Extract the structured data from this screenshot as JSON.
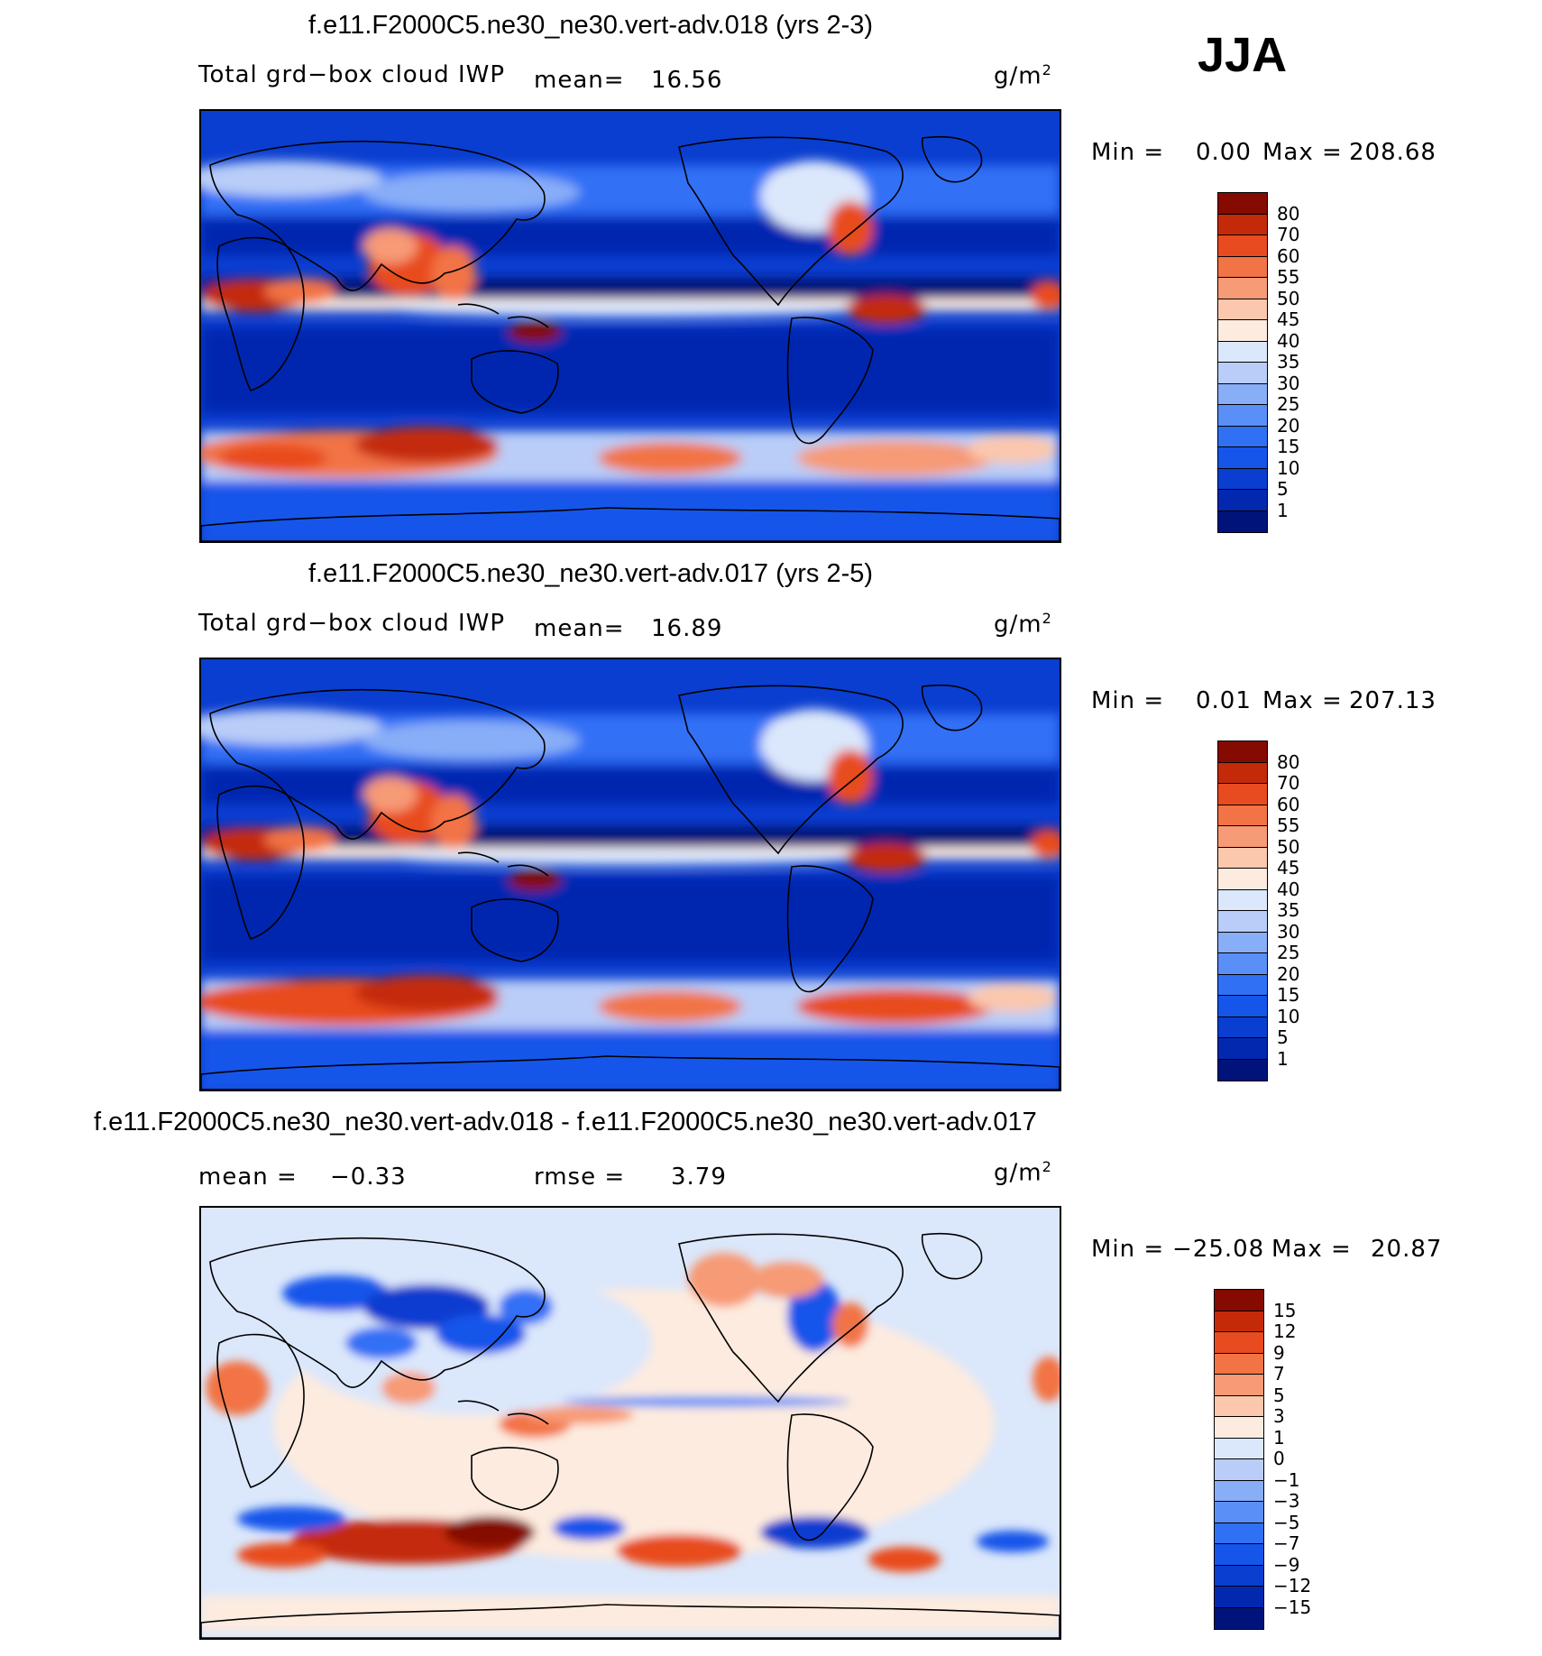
{
  "season": "JJA",
  "panels": [
    {
      "id": "p1",
      "title": "f.e11.F2000C5.ne30_ne30.vert-adv.018 (yrs 2-3)",
      "variable": "Total grd−box cloud IWP",
      "mean_label": "mean=",
      "mean_value": "16.56",
      "units": "g/m",
      "units_sup": "2",
      "min_label": "Min =",
      "min_value": "0.00",
      "max_label": "Max =",
      "max_value": "208.68"
    },
    {
      "id": "p2",
      "title": "f.e11.F2000C5.ne30_ne30.vert-adv.017 (yrs 2-5)",
      "variable": "Total grd−box cloud IWP",
      "mean_label": "mean=",
      "mean_value": "16.89",
      "units": "g/m",
      "units_sup": "2",
      "min_label": "Min =",
      "min_value": "0.01",
      "max_label": "Max =",
      "max_value": "207.13"
    },
    {
      "id": "p3",
      "title": "f.e11.F2000C5.ne30_ne30.vert-adv.018 - f.e11.F2000C5.ne30_ne30.vert-adv.017",
      "mean_label": "mean =",
      "mean_value": "−0.33",
      "rmse_label": "rmse =",
      "rmse_value": "3.79",
      "units": "g/m",
      "units_sup": "2",
      "min_label": "Min =",
      "min_value": "−25.08",
      "max_label": "Max =",
      "max_value": "20.87"
    }
  ],
  "chart_data": [
    {
      "type": "heatmap",
      "title": "f.e11.F2000C5.ne30_ne30.vert-adv.018 (yrs 2-3)",
      "variable": "Total grd-box cloud IWP",
      "units": "g/m^2",
      "mean": 16.56,
      "min": 0.0,
      "max": 208.68,
      "contour_levels": [
        1,
        5,
        10,
        15,
        20,
        25,
        30,
        35,
        40,
        45,
        50,
        55,
        60,
        70,
        80
      ],
      "colors": [
        "#00137a",
        "#0328b0",
        "#0a3ed0",
        "#1555ea",
        "#3070f5",
        "#5a8ff8",
        "#88aef8",
        "#b9cdf8",
        "#dbe7fb",
        "#fdebdf",
        "#fbc7ad",
        "#f79a76",
        "#f27345",
        "#e84b1f",
        "#c42a0a",
        "#850a00"
      ]
    },
    {
      "type": "heatmap",
      "title": "f.e11.F2000C5.ne30_ne30.vert-adv.017 (yrs 2-5)",
      "variable": "Total grd-box cloud IWP",
      "units": "g/m^2",
      "mean": 16.89,
      "min": 0.01,
      "max": 207.13,
      "contour_levels": [
        1,
        5,
        10,
        15,
        20,
        25,
        30,
        35,
        40,
        45,
        50,
        55,
        60,
        70,
        80
      ],
      "colors": [
        "#00137a",
        "#0328b0",
        "#0a3ed0",
        "#1555ea",
        "#3070f5",
        "#5a8ff8",
        "#88aef8",
        "#b9cdf8",
        "#dbe7fb",
        "#fdebdf",
        "#fbc7ad",
        "#f79a76",
        "#f27345",
        "#e84b1f",
        "#c42a0a",
        "#850a00"
      ]
    },
    {
      "type": "heatmap",
      "title": "f.e11.F2000C5.ne30_ne30.vert-adv.018 - f.e11.F2000C5.ne30_ne30.vert-adv.017",
      "units": "g/m^2",
      "mean": -0.33,
      "rmse": 3.79,
      "min": -25.08,
      "max": 20.87,
      "contour_levels": [
        -15,
        -12,
        -9,
        -7,
        -5,
        -3,
        -1,
        0,
        1,
        3,
        5,
        7,
        9,
        12,
        15
      ],
      "level_labels": [
        "−15",
        "−12",
        "−9",
        "−7",
        "−5",
        "−3",
        "−1",
        "0",
        "1",
        "3",
        "5",
        "7",
        "9",
        "12",
        "15"
      ],
      "colors": [
        "#00137a",
        "#0328b0",
        "#0a3ed0",
        "#1555ea",
        "#3070f5",
        "#5a8ff8",
        "#88aef8",
        "#b9cdf8",
        "#dbe7fb",
        "#fdebdf",
        "#fbc7ad",
        "#f79a76",
        "#f27345",
        "#e84b1f",
        "#c42a0a",
        "#850a00"
      ]
    }
  ]
}
